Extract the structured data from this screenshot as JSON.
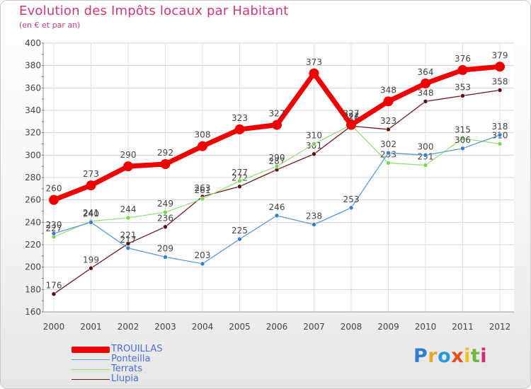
{
  "title": "Evolution des Impôts locaux par Habitant",
  "subtitle": "(en € et par an)",
  "brand": {
    "text": "Proxiti",
    "letters": [
      "P",
      "r",
      "o",
      "x",
      "i",
      "t",
      "i"
    ],
    "colors": [
      "#2f7fd0",
      "#e8a52a",
      "#2a9bd8",
      "#e84e1b",
      "#f2c21c",
      "#6fb83b",
      "#d22a75"
    ]
  },
  "chart_data": {
    "type": "line",
    "title": "Evolution des Impôts locaux par Habitant",
    "subtitle": "(en € et par an)",
    "xlabel": "",
    "ylabel": "",
    "ylim": [
      160,
      400
    ],
    "yticks": [
      160,
      180,
      200,
      220,
      240,
      260,
      280,
      300,
      320,
      340,
      360,
      380,
      400
    ],
    "grid": true,
    "legend_position": "bottom-left",
    "categories": [
      "2000",
      "2001",
      "2002",
      "2003",
      "2004",
      "2005",
      "2006",
      "2007",
      "2008",
      "2009",
      "2010",
      "2011",
      "2012"
    ],
    "series": [
      {
        "name": "Llupia",
        "color": "#6b1a1a",
        "marker": "#5a1010",
        "values": [
          176,
          199,
          221,
          236,
          263,
          272,
          287,
          301,
          326,
          323,
          348,
          353,
          358
        ],
        "labels": [
          "176",
          "199",
          "221",
          "236",
          "263",
          "272",
          "287",
          "301",
          "326",
          "323",
          "348",
          "353",
          "358"
        ]
      },
      {
        "name": "Terrats",
        "color": "#99e07a",
        "marker": "#7bd45a",
        "values": [
          227,
          241,
          244,
          249,
          261,
          277,
          290,
          310,
          327,
          293,
          291,
          315,
          310
        ],
        "labels": [
          "227",
          "241",
          "244",
          "249",
          "261",
          "277",
          "290",
          "310",
          "327",
          "293",
          "291",
          "315",
          "310"
        ]
      },
      {
        "name": "Ponteilla",
        "color": "#5e9ad6",
        "marker": "#3a7fc4",
        "values": [
          230,
          240,
          217,
          209,
          203,
          225,
          246,
          238,
          253,
          302,
          300,
          306,
          318
        ],
        "labels": [
          "230",
          "240",
          "217",
          "209",
          "203",
          "225",
          "246",
          "238",
          "253",
          "302",
          "300",
          "306",
          "318"
        ]
      },
      {
        "name": "TROUILLAS",
        "color": "#ee0000",
        "marker": "#ee0000",
        "values": [
          260,
          273,
          290,
          292,
          308,
          323,
          327,
          373,
          327,
          348,
          364,
          376,
          379
        ],
        "labels": [
          "260",
          "273",
          "290",
          "292",
          "308",
          "323",
          "327",
          "373",
          "327",
          "348",
          "364",
          "376",
          "379"
        ]
      }
    ],
    "legend": [
      {
        "name": "TROUILLAS",
        "color": "#ee0000",
        "text_color": "#4a6fd8"
      },
      {
        "name": "Ponteilla",
        "color": "#5e9ad6",
        "text_color": "#4a6fd8"
      },
      {
        "name": "Terrats",
        "color": "#99e07a",
        "text_color": "#4a6fd8"
      },
      {
        "name": "Llupia",
        "color": "#6b1a1a",
        "text_color": "#4a6fd8"
      }
    ]
  }
}
